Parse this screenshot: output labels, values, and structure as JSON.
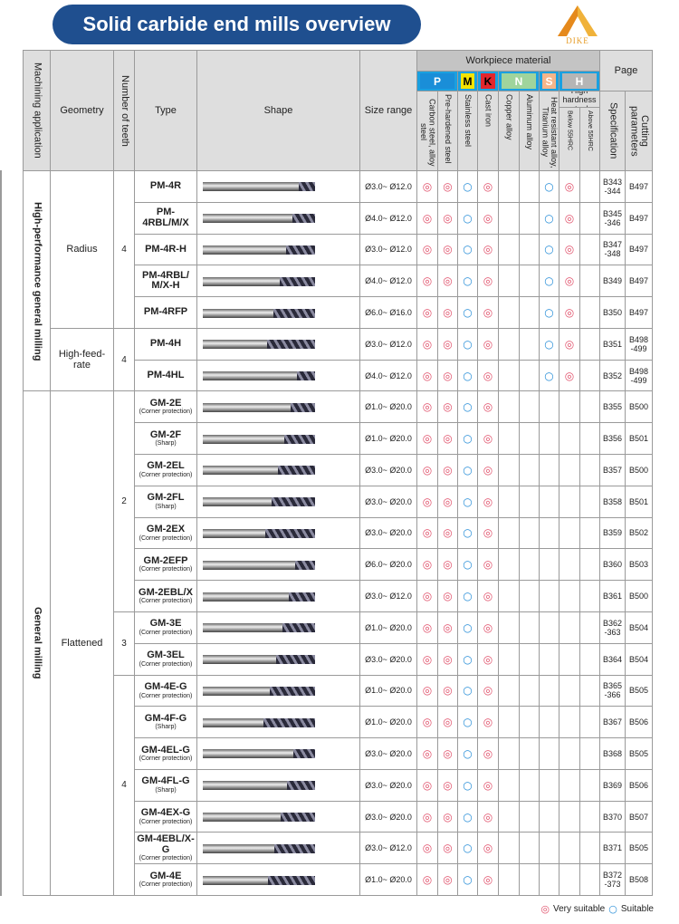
{
  "header": {
    "title": "Solid carbide end mills overview",
    "logo": "DIKE"
  },
  "table": {
    "columns": {
      "application": "Machining application",
      "geometry": "Geometry",
      "teeth": "Number of teeth",
      "type": "Type",
      "shape": "Shape",
      "size": "Size range",
      "material": "Workpiece material",
      "page": "Page",
      "specification": "Specification",
      "cutting": "Cutting parameters"
    },
    "materials": [
      {
        "letter": "P",
        "color": "#1a8ed8",
        "columns": [
          "Carbon steel, alloy steel",
          "Pre-hardened steel"
        ]
      },
      {
        "letter": "M",
        "color": "#f4e400",
        "columns": [
          "Stainless steel"
        ]
      },
      {
        "letter": "K",
        "color": "#e3262d",
        "columns": [
          "Cast iron"
        ]
      },
      {
        "letter": "N",
        "color": "#9fd49c",
        "columns": [
          "Copper alloy",
          "Aluminum alloy"
        ]
      },
      {
        "letter": "S",
        "color": "#f5b58a",
        "columns": [
          "Heat resistant alloy, Titanium alloy"
        ]
      },
      {
        "letter": "H",
        "color": "#b5b5b5",
        "label": "High hardness steel",
        "columns": [
          "Below 55HRC",
          "Above 55HRC"
        ]
      }
    ],
    "applications": [
      {
        "label": "High-performance general milling",
        "geometries": [
          {
            "label": "Radius",
            "teeth": [
              {
                "label": "4",
                "rows": [
                  {
                    "type": "PM-4R",
                    "size": "Ø3.0~ Ø12.0",
                    "ratings": [
                      "◎",
                      "◎",
                      "○",
                      "◎",
                      null,
                      null,
                      "○",
                      "◎",
                      null,
                      null
                    ],
                    "specification": "B343 -344",
                    "cutting": "B497"
                  },
                  {
                    "type": "PM-4RBL/M/X",
                    "size": "Ø4.0~ Ø12.0",
                    "ratings": [
                      "◎",
                      "◎",
                      "○",
                      "◎",
                      null,
                      null,
                      "○",
                      "◎",
                      null,
                      null
                    ],
                    "specification": "B345 -346",
                    "cutting": "B497"
                  },
                  {
                    "type": "PM-4R-H",
                    "size": "Ø3.0~ Ø12.0",
                    "ratings": [
                      "◎",
                      "◎",
                      "○",
                      "◎",
                      null,
                      null,
                      "○",
                      "◎",
                      null,
                      null
                    ],
                    "specification": "B347 -348",
                    "cutting": "B497"
                  },
                  {
                    "type": "PM-4RBL/ M/X-H",
                    "size": "Ø4.0~ Ø12.0",
                    "ratings": [
                      "◎",
                      "◎",
                      "○",
                      "◎",
                      null,
                      null,
                      "○",
                      "◎",
                      null,
                      null
                    ],
                    "specification": "B349",
                    "cutting": "B497"
                  },
                  {
                    "type": "PM-4RFP",
                    "size": "Ø6.0~ Ø16.0",
                    "ratings": [
                      "◎",
                      "◎",
                      "○",
                      "◎",
                      null,
                      null,
                      "○",
                      "◎",
                      null,
                      null
                    ],
                    "specification": "B350",
                    "cutting": "B497"
                  }
                ]
              }
            ]
          },
          {
            "label": "High-feed-rate",
            "teeth": [
              {
                "label": "4",
                "rows": [
                  {
                    "type": "PM-4H",
                    "size": "Ø3.0~ Ø12.0",
                    "ratings": [
                      "◎",
                      "◎",
                      "○",
                      "◎",
                      null,
                      null,
                      "○",
                      "◎",
                      null,
                      null
                    ],
                    "specification": "B351",
                    "cutting": "B498 -499"
                  },
                  {
                    "type": "PM-4HL",
                    "size": "Ø4.0~ Ø12.0",
                    "ratings": [
                      "◎",
                      "◎",
                      "○",
                      "◎",
                      null,
                      null,
                      "○",
                      "◎",
                      null,
                      null
                    ],
                    "specification": "B352",
                    "cutting": "B498 -499"
                  }
                ]
              }
            ]
          }
        ]
      },
      {
        "label": "General milling",
        "geometries": [
          {
            "label": "Flattened",
            "teeth": [
              {
                "label": "2",
                "rows": [
                  {
                    "type": "GM-2E",
                    "note": "(Corner protection)",
                    "size": "Ø1.0~ Ø20.0",
                    "ratings": [
                      "◎",
                      "◎",
                      "○",
                      "◎",
                      null,
                      null,
                      null,
                      null,
                      null,
                      null
                    ],
                    "specification": "B355",
                    "cutting": "B500"
                  },
                  {
                    "type": "GM-2F",
                    "note": "(Sharp)",
                    "size": "Ø1.0~ Ø20.0",
                    "ratings": [
                      "◎",
                      "◎",
                      "○",
                      "◎",
                      null,
                      null,
                      null,
                      null,
                      null,
                      null
                    ],
                    "specification": "B356",
                    "cutting": "B501"
                  },
                  {
                    "type": "GM-2EL",
                    "note": "(Corner protection)",
                    "size": "Ø3.0~ Ø20.0",
                    "ratings": [
                      "◎",
                      "◎",
                      "○",
                      "◎",
                      null,
                      null,
                      null,
                      null,
                      null,
                      null
                    ],
                    "specification": "B357",
                    "cutting": "B500"
                  },
                  {
                    "type": "GM-2FL",
                    "note": "(Sharp)",
                    "size": "Ø3.0~ Ø20.0",
                    "ratings": [
                      "◎",
                      "◎",
                      "○",
                      "◎",
                      null,
                      null,
                      null,
                      null,
                      null,
                      null
                    ],
                    "specification": "B358",
                    "cutting": "B501"
                  },
                  {
                    "type": "GM-2EX",
                    "note": "(Corner protection)",
                    "size": "Ø3.0~ Ø20.0",
                    "ratings": [
                      "◎",
                      "◎",
                      "○",
                      "◎",
                      null,
                      null,
                      null,
                      null,
                      null,
                      null
                    ],
                    "specification": "B359",
                    "cutting": "B502"
                  },
                  {
                    "type": "GM-2EFP",
                    "note": "(Corner protection)",
                    "size": "Ø6.0~ Ø20.0",
                    "ratings": [
                      "◎",
                      "◎",
                      "○",
                      "◎",
                      null,
                      null,
                      null,
                      null,
                      null,
                      null
                    ],
                    "specification": "B360",
                    "cutting": "B503"
                  },
                  {
                    "type": "GM-2EBL/X",
                    "note": "(Corner protection)",
                    "size": "Ø3.0~ Ø12.0",
                    "ratings": [
                      "◎",
                      "◎",
                      "○",
                      "◎",
                      null,
                      null,
                      null,
                      null,
                      null,
                      null
                    ],
                    "specification": "B361",
                    "cutting": "B500"
                  }
                ]
              },
              {
                "label": "3",
                "rows": [
                  {
                    "type": "GM-3E",
                    "note": "(Corner protection)",
                    "size": "Ø1.0~ Ø20.0",
                    "ratings": [
                      "◎",
                      "◎",
                      "○",
                      "◎",
                      null,
                      null,
                      null,
                      null,
                      null,
                      null
                    ],
                    "specification": "B362 -363",
                    "cutting": "B504"
                  },
                  {
                    "type": "GM-3EL",
                    "note": "(Corner protection)",
                    "size": "Ø3.0~ Ø20.0",
                    "ratings": [
                      "◎",
                      "◎",
                      "○",
                      "◎",
                      null,
                      null,
                      null,
                      null,
                      null,
                      null
                    ],
                    "specification": "B364",
                    "cutting": "B504"
                  }
                ]
              },
              {
                "label": "4",
                "rows": [
                  {
                    "type": "GM-4E-G",
                    "note": "(Corner protection)",
                    "size": "Ø1.0~ Ø20.0",
                    "ratings": [
                      "◎",
                      "◎",
                      "○",
                      "◎",
                      null,
                      null,
                      null,
                      null,
                      null,
                      null
                    ],
                    "specification": "B365 -366",
                    "cutting": "B505"
                  },
                  {
                    "type": "GM-4F-G",
                    "note": "(Sharp)",
                    "size": "Ø1.0~ Ø20.0",
                    "ratings": [
                      "◎",
                      "◎",
                      "○",
                      "◎",
                      null,
                      null,
                      null,
                      null,
                      null,
                      null
                    ],
                    "specification": "B367",
                    "cutting": "B506"
                  },
                  {
                    "type": "GM-4EL-G",
                    "note": "(Corner protection)",
                    "size": "Ø3.0~ Ø20.0",
                    "ratings": [
                      "◎",
                      "◎",
                      "○",
                      "◎",
                      null,
                      null,
                      null,
                      null,
                      null,
                      null
                    ],
                    "specification": "B368",
                    "cutting": "B505"
                  },
                  {
                    "type": "GM-4FL-G",
                    "note": "(Sharp)",
                    "size": "Ø3.0~ Ø20.0",
                    "ratings": [
                      "◎",
                      "◎",
                      "○",
                      "◎",
                      null,
                      null,
                      null,
                      null,
                      null,
                      null
                    ],
                    "specification": "B369",
                    "cutting": "B506"
                  },
                  {
                    "type": "GM-4EX-G",
                    "note": "(Corner protection)",
                    "size": "Ø3.0~ Ø20.0",
                    "ratings": [
                      "◎",
                      "◎",
                      "○",
                      "◎",
                      null,
                      null,
                      null,
                      null,
                      null,
                      null
                    ],
                    "specification": "B370",
                    "cutting": "B507"
                  },
                  {
                    "type": "GM-4EBL/X-G",
                    "note": "(Corner protection)",
                    "size": "Ø3.0~ Ø12.0",
                    "ratings": [
                      "◎",
                      "◎",
                      "○",
                      "◎",
                      null,
                      null,
                      null,
                      null,
                      null,
                      null
                    ],
                    "specification": "B371",
                    "cutting": "B505"
                  },
                  {
                    "type": "GM-4E",
                    "note": "(Corner protection)",
                    "size": "Ø1.0~ Ø20.0",
                    "ratings": [
                      "◎",
                      "◎",
                      "○",
                      "◎",
                      null,
                      null,
                      null,
                      null,
                      null,
                      null
                    ],
                    "specification": "B372 -373",
                    "cutting": "B508"
                  }
                ]
              }
            ]
          }
        ]
      }
    ],
    "legend": [
      {
        "symbol": "◎",
        "color": "#e0506a",
        "label": "Very suitable"
      },
      {
        "symbol": "○",
        "color": "#2a8fd8",
        "label": "Suitable"
      }
    ]
  }
}
